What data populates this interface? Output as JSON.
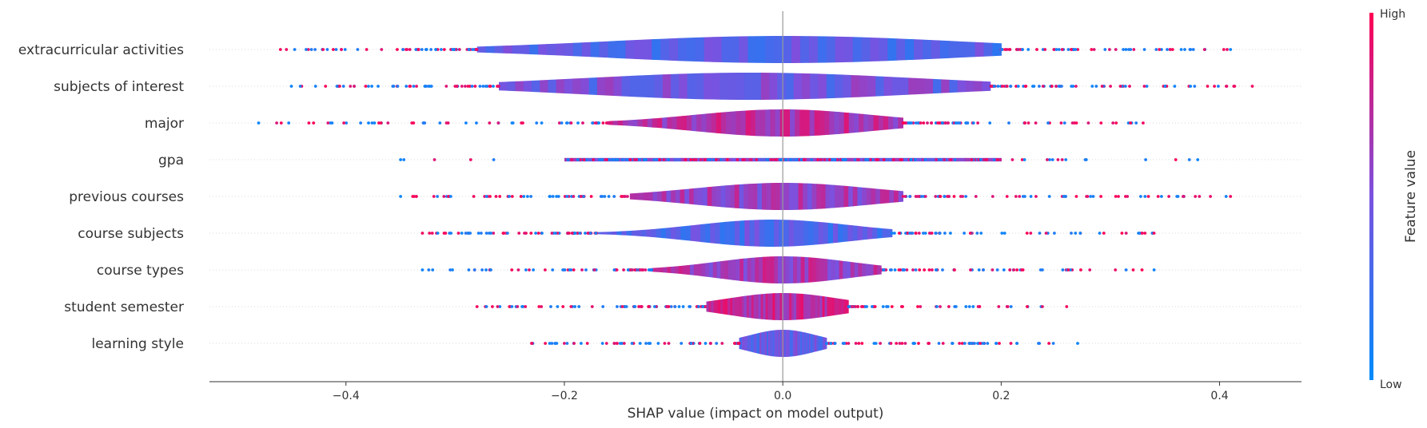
{
  "chart_data": {
    "type": "violin",
    "xlabel": "SHAP value (impact on model output)",
    "xlim": [
      -0.525,
      0.475
    ],
    "xticks": [
      -0.4,
      -0.2,
      0.0,
      0.2,
      0.4
    ],
    "xtick_labels": [
      "−0.4",
      "−0.2",
      "0.0",
      "0.2",
      "0.4"
    ],
    "colorbar": {
      "label": "Feature value",
      "high_label": "High",
      "low_label": "Low",
      "low_color": "#008bfb",
      "high_color": "#ff0052"
    },
    "features": [
      {
        "name": "extracurricular activities",
        "min": -0.46,
        "max": 0.41,
        "core": [
          -0.28,
          0.2
        ],
        "density_peak": 0.0,
        "spread": 0.16,
        "tone": 0.35
      },
      {
        "name": "subjects of interest",
        "min": -0.45,
        "max": 0.43,
        "core": [
          -0.26,
          0.19
        ],
        "density_peak": -0.03,
        "spread": 0.15,
        "tone": 0.45
      },
      {
        "name": "major",
        "min": -0.48,
        "max": 0.33,
        "core": [
          -0.16,
          0.11
        ],
        "density_peak": 0.0,
        "spread": 0.08,
        "tone": 0.7
      },
      {
        "name": "gpa",
        "min": -0.35,
        "max": 0.38,
        "core": [
          -0.2,
          0.2
        ],
        "density_peak": 0.0,
        "spread": 0.04,
        "tone": 0.5
      },
      {
        "name": "previous courses",
        "min": -0.35,
        "max": 0.41,
        "core": [
          -0.14,
          0.11
        ],
        "density_peak": 0.0,
        "spread": 0.08,
        "tone": 0.6
      },
      {
        "name": "course subjects",
        "min": -0.33,
        "max": 0.34,
        "core": [
          -0.17,
          0.1
        ],
        "density_peak": -0.01,
        "spread": 0.07,
        "tone": 0.35
      },
      {
        "name": "course types",
        "min": -0.33,
        "max": 0.34,
        "core": [
          -0.12,
          0.09
        ],
        "density_peak": 0.0,
        "spread": 0.06,
        "tone": 0.65
      },
      {
        "name": "student semester",
        "min": -0.28,
        "max": 0.26,
        "core": [
          -0.07,
          0.06
        ],
        "density_peak": 0.0,
        "spread": 0.05,
        "tone": 0.75
      },
      {
        "name": "learning style",
        "min": -0.23,
        "max": 0.27,
        "core": [
          -0.04,
          0.04
        ],
        "density_peak": 0.0,
        "spread": 0.03,
        "tone": 0.4
      }
    ]
  }
}
